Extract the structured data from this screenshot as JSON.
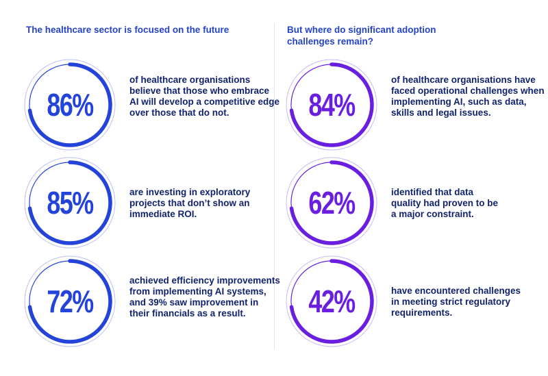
{
  "colors": {
    "left_accent": "#2443d8",
    "right_accent": "#6a1fe0",
    "left_track": "#b9c2ee",
    "right_track": "#cdb8f2",
    "description_text": "#12236e",
    "title_text": "#2443c7"
  },
  "left_column": {
    "title": "The healthcare sector is focused on the future",
    "stats": [
      {
        "value": "86%",
        "percent": 86,
        "description": "of healthcare organisations believe that those who embrace AI will develop a competitive edge over those that do not."
      },
      {
        "value": "85%",
        "percent": 85,
        "description": "are investing in exploratory projects that don’t show an immediate ROI."
      },
      {
        "value": "72%",
        "percent": 72,
        "description": "achieved efficiency improvements from implementing AI systems, and 39% saw improvement in their financials as a result."
      }
    ]
  },
  "right_column": {
    "title": "But where do significant adoption challenges remain?",
    "stats": [
      {
        "value": "84%",
        "percent": 84,
        "description": "of healthcare organisations have faced operational challenges when implementing AI, such as data, skills and legal issues."
      },
      {
        "value": "62%",
        "percent": 62,
        "description": "identified that data quality had proven to be a major constraint."
      },
      {
        "value": "42%",
        "percent": 42,
        "description": "have encountered challenges in meeting strict regulatory requirements."
      }
    ]
  }
}
